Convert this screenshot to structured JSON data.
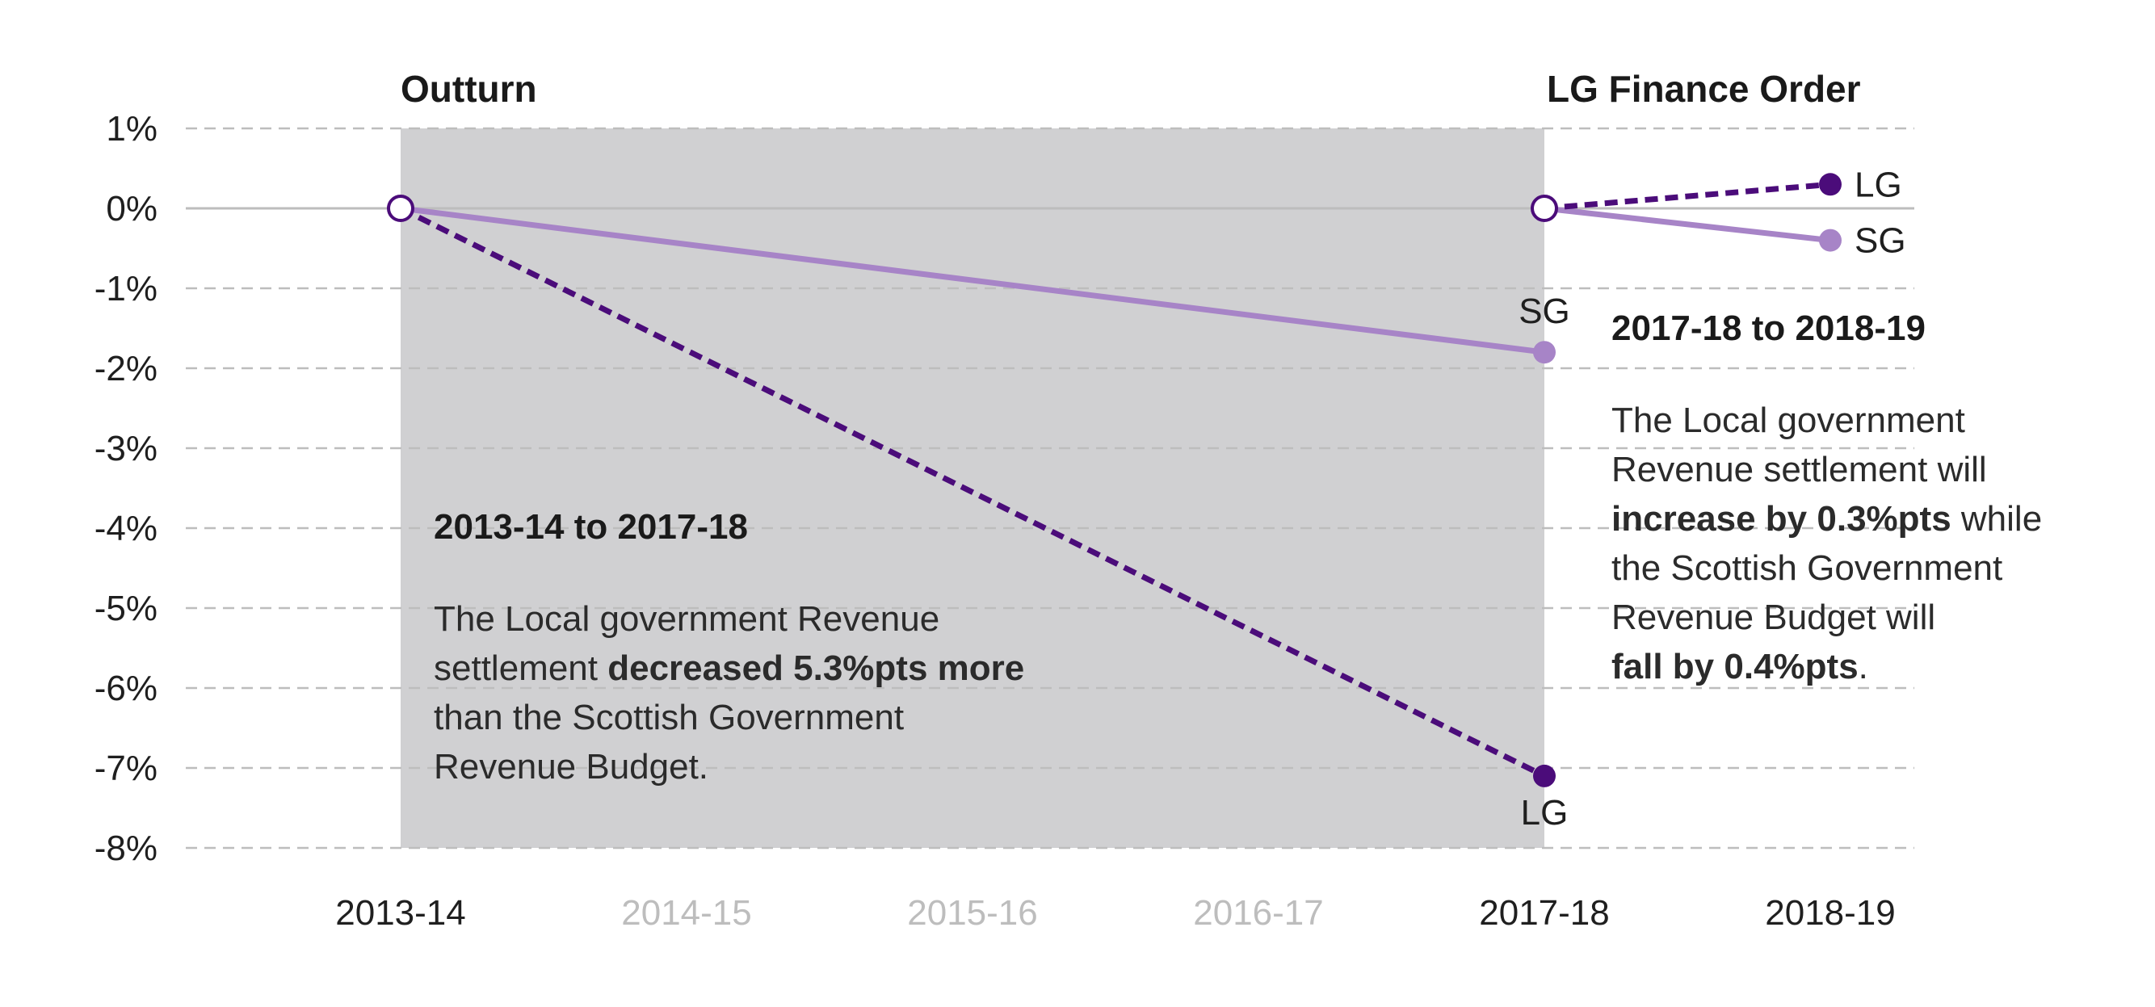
{
  "colors": {
    "lg": "#4b0c7a",
    "sg": "#a784c7",
    "shade": "#d0d0d2",
    "grid": "#bdbdbd",
    "zero": "#bdbdbd",
    "tick_dark": "#1f1f1f",
    "tick_light": "#bdbdbd"
  },
  "headers": {
    "outturn": "Outturn",
    "lg_finance_order": "LG Finance Order"
  },
  "chart_data": {
    "type": "line",
    "categories": [
      "2013-14",
      "2014-15",
      "2015-16",
      "2016-17",
      "2017-18",
      "2018-19"
    ],
    "categories_emphasized": [
      "2013-14",
      "2017-18",
      "2018-19"
    ],
    "ylim": [
      -8,
      1
    ],
    "yticks": [
      "1%",
      "0%",
      "-1%",
      "-2%",
      "-3%",
      "-4%",
      "-5%",
      "-6%",
      "-7%",
      "-8%"
    ],
    "shaded_range": [
      "2013-14",
      "2017-18"
    ],
    "grid": true,
    "series": [
      {
        "name": "SG",
        "style": "solid",
        "segments": [
          {
            "x": [
              "2013-14",
              "2017-18"
            ],
            "y": [
              0,
              -1.8
            ]
          },
          {
            "x": [
              "2017-18",
              "2018-19"
            ],
            "y": [
              0,
              -0.4
            ]
          }
        ]
      },
      {
        "name": "LG",
        "style": "dashed",
        "segments": [
          {
            "x": [
              "2013-14",
              "2017-18"
            ],
            "y": [
              0,
              -7.1
            ]
          },
          {
            "x": [
              "2017-18",
              "2018-19"
            ],
            "y": [
              0,
              0.3
            ]
          }
        ]
      }
    ],
    "point_labels": [
      {
        "text": "SG",
        "x": "2017-18",
        "y": -1.8,
        "pos": "above"
      },
      {
        "text": "LG",
        "x": "2017-18",
        "y": -7.1,
        "pos": "below"
      },
      {
        "text": "LG",
        "x": "2018-19",
        "y": 0.3,
        "pos": "right"
      },
      {
        "text": "SG",
        "x": "2018-19",
        "y": -0.4,
        "pos": "right"
      }
    ]
  },
  "notes": {
    "left": {
      "title": "2013-14 to 2017-18",
      "line1": "The Local government Revenue",
      "line2a": "settlement ",
      "line2b": "decreased 5.3%pts more",
      "line3": "than the Scottish Government",
      "line4": "Revenue Budget."
    },
    "right": {
      "title": "2017-18 to 2018-19",
      "line1": "The Local government",
      "line2": "Revenue settlement will",
      "line3a": "increase by 0.3%pts",
      "line3b": " while",
      "line4": "the Scottish Government",
      "line5": "Revenue Budget will",
      "line6a": "fall by 0.4%pts",
      "line6b": "."
    }
  }
}
